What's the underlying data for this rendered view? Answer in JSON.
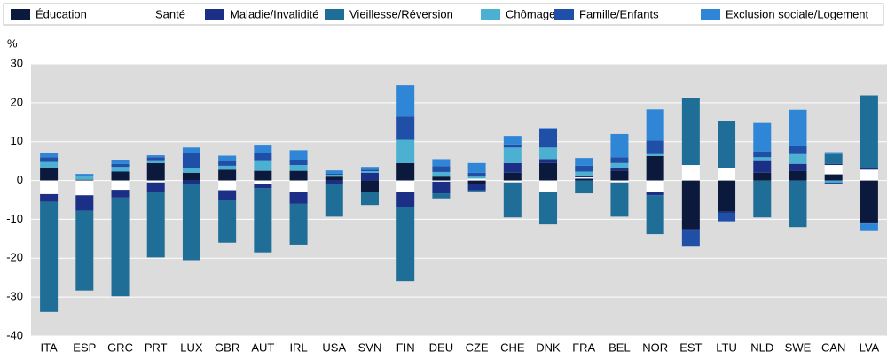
{
  "chart_data": {
    "type": "stacked_bar",
    "y_label": "%",
    "categories": [
      "ITA",
      "ESP",
      "GRC",
      "PRT",
      "LUX",
      "GBR",
      "AUT",
      "IRL",
      "USA",
      "SVN",
      "FIN",
      "DEU",
      "CZE",
      "CHE",
      "DNK",
      "FRA",
      "BEL",
      "NOR",
      "EST",
      "LTU",
      "NLD",
      "SWE",
      "CAN",
      "LVA"
    ],
    "series": [
      {
        "name": "Éducation",
        "color": "#0b1a3c",
        "values": [
          3.3,
          0.2,
          2.3,
          4.5,
          2,
          2.8,
          2.5,
          2.5,
          1,
          -3,
          4.5,
          1,
          -1,
          2,
          4.5,
          0.5,
          2.5,
          6.3,
          -12.5,
          -8,
          2,
          2.5,
          1.6,
          -10.8
        ]
      },
      {
        "name": "Santé",
        "color": "#ffffff",
        "values": [
          -3.5,
          -3.8,
          -2.4,
          -0.5,
          0,
          -2.5,
          -1,
          -3,
          0,
          0,
          -3,
          -0.3,
          0.5,
          -0.5,
          -3,
          0.3,
          -0.5,
          -3,
          4,
          3.3,
          0,
          0,
          2.4,
          2.8
        ]
      },
      {
        "name": "Maladie/Invalidité",
        "color": "#1b2f86",
        "values": [
          -2,
          -4,
          -2,
          -2.5,
          -1,
          -2.5,
          -1,
          -3,
          -1,
          2,
          -3.8,
          -3,
          -1.5,
          2.5,
          1,
          0.5,
          0.8,
          -0.8,
          -0.3,
          -0.3,
          3,
          1.8,
          0.3,
          0.3
        ]
      },
      {
        "name": "Vieillesse/Réversion",
        "color": "#1f6e98",
        "values": [
          -28.3,
          -20.5,
          -25.4,
          -16.8,
          -19.5,
          -11,
          -16.5,
          -10.5,
          -8.3,
          -3.3,
          -19.1,
          -1.3,
          -0.3,
          -9,
          -8.3,
          -3.3,
          -8.8,
          -10,
          17.3,
          12,
          -9.5,
          -12,
          2.5,
          18.8
        ]
      },
      {
        "name": "Chômage",
        "color": "#4bb0d2",
        "values": [
          1.5,
          0.8,
          1.2,
          0.5,
          1.2,
          1,
          2.5,
          1.5,
          0.5,
          0.4,
          6,
          1.2,
          0.5,
          4,
          3,
          1,
          1.2,
          0.5,
          0,
          0,
          1,
          2.5,
          -0.5,
          0
        ]
      },
      {
        "name": "Famille/Enfants",
        "color": "#1f4fa6",
        "values": [
          1.2,
          0,
          0.8,
          1,
          3.8,
          1.2,
          2,
          1.3,
          0.3,
          0.4,
          6,
          1.5,
          1,
          0.8,
          4.7,
          1.5,
          1.5,
          3.5,
          -4,
          -2.2,
          1.5,
          2,
          -0.3,
          -0.3
        ]
      },
      {
        "name": "Exclusion sociale/Logement",
        "color": "#2f86d6",
        "values": [
          1.2,
          0.7,
          0.9,
          0.5,
          1.5,
          1.4,
          2,
          2.5,
          0.8,
          0.7,
          8,
          1.8,
          2.5,
          2.2,
          0.3,
          2,
          6,
          8,
          0,
          0,
          7.3,
          9.4,
          0.5,
          -1.7
        ]
      }
    ],
    "ylim": [
      -40,
      30
    ],
    "yticks": [
      -40,
      -30,
      -20,
      -10,
      0,
      10,
      20,
      30
    ],
    "grid": true
  }
}
